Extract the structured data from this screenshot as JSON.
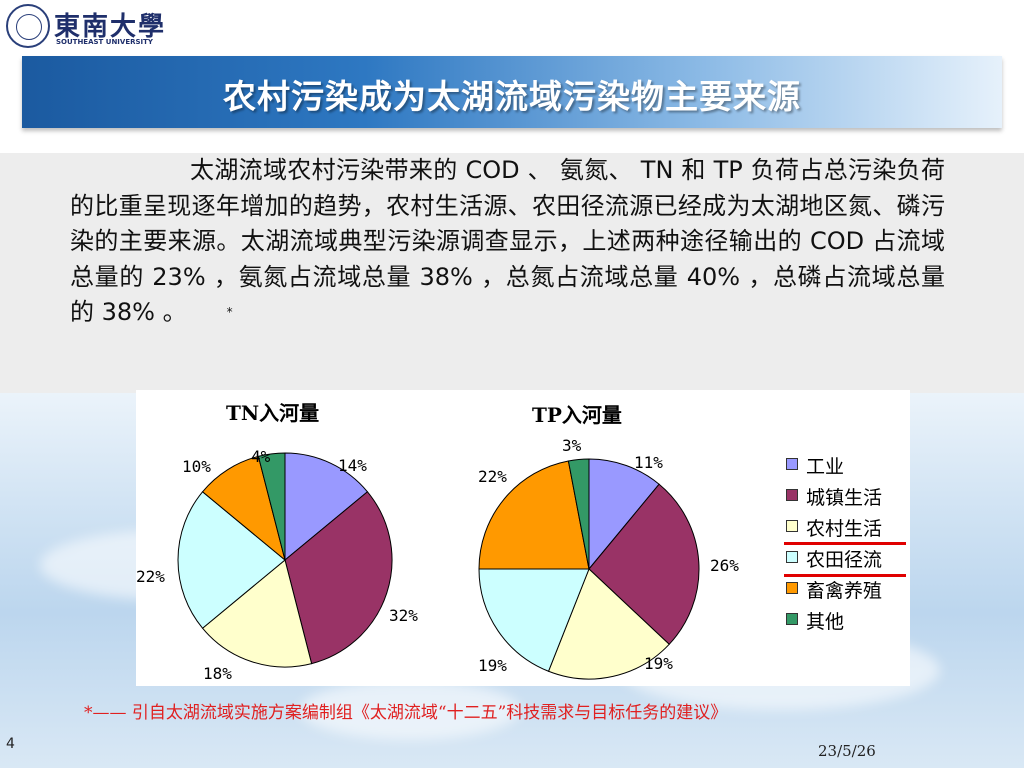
{
  "header": {
    "university_cn": "東南大學",
    "university_en": "SOUTHEAST UNIVERSITY"
  },
  "slide": {
    "title": "农村污染成为太湖流域污染物主要来源",
    "paragraph": "太湖流域农村污染带来的 COD 、 氨氮、 TN 和 TP 负荷占总污染负荷的比重呈现逐年增加的趋势，农村生活源、农田径流源已经成为太湖地区氮、磷污染的主要来源。太湖流域典型污染源调查显示，上述两种途径输出的 COD 占流域总量的 23% ，氨氮占流域总量 38% ，总氮占流域总量 40% ，总磷占流域总量的 38% 。",
    "asterisk": "*",
    "citation": "*—— 引自太湖流域实施方案编制组《太湖流域“十二五”科技需求与目标任务的建议》",
    "page_number": "4",
    "date": "23/5/26"
  },
  "chart_data": [
    {
      "type": "pie",
      "title": "TN入河量",
      "categories": [
        "工业",
        "城镇生活",
        "农村生活",
        "农田径流",
        "畜禽养殖",
        "其他"
      ],
      "values": [
        14,
        32,
        18,
        22,
        10,
        4
      ],
      "labels": [
        "14%",
        "32%",
        "18%",
        "22%",
        "10%",
        "4%"
      ]
    },
    {
      "type": "pie",
      "title": "TP入河量",
      "categories": [
        "工业",
        "城镇生活",
        "农村生活",
        "农田径流",
        "畜禽养殖",
        "其他"
      ],
      "values": [
        11,
        26,
        19,
        19,
        22,
        3
      ],
      "labels": [
        "11%",
        "26%",
        "19%",
        "19%",
        "22%",
        "3%"
      ]
    }
  ],
  "legend": {
    "placement": "right",
    "items": [
      {
        "label": "工业",
        "color": "#9999ff"
      },
      {
        "label": "城镇生活",
        "color": "#993366"
      },
      {
        "label": "农村生活",
        "color": "#ffffcc"
      },
      {
        "label": "农田径流",
        "color": "#ccffff"
      },
      {
        "label": "畜禽养殖",
        "color": "#ff9900"
      },
      {
        "label": "其他",
        "color": "#339966"
      }
    ],
    "underlined": [
      "农村生活",
      "农田径流"
    ],
    "underline_color": "#e00000"
  }
}
